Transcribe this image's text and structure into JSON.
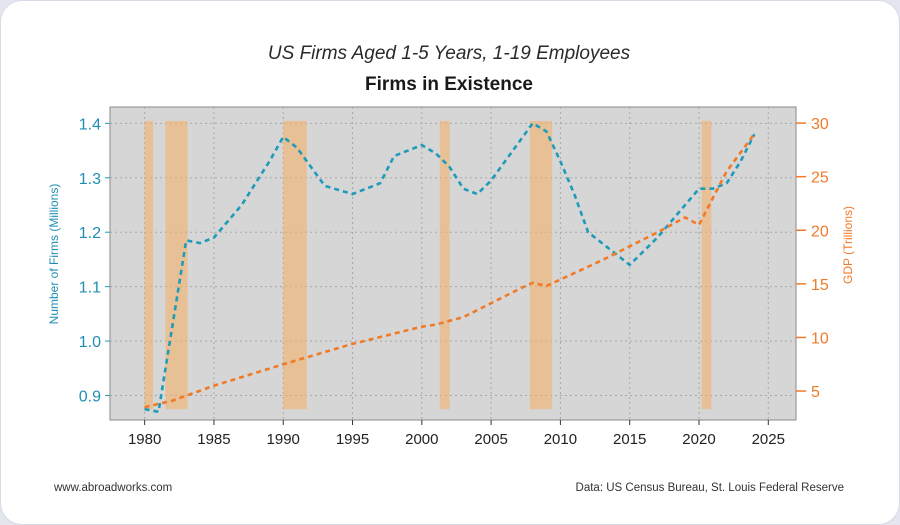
{
  "chart_data": {
    "type": "line",
    "title": "US Firms Aged 1-5 Years, 1-19 Employees",
    "subtitle": "Firms in Existence",
    "ylabel": "Number of Firms (Millions)",
    "y2label": "GDP (Trillions)",
    "xlim": [
      1977.5,
      2027
    ],
    "ylim": [
      0.855,
      1.43
    ],
    "y2lim": [
      2.3,
      31.5
    ],
    "xticks": [
      1980,
      1985,
      1990,
      1995,
      2000,
      2005,
      2010,
      2015,
      2020,
      2025
    ],
    "yticks": [
      0.9,
      1.0,
      1.1,
      1.2,
      1.3,
      1.4
    ],
    "y2ticks": [
      5,
      10,
      15,
      20,
      25,
      30
    ],
    "grid": true,
    "recessions": [
      [
        1980.0,
        1980.6
      ],
      [
        1981.5,
        1983.1
      ],
      [
        1990.0,
        1991.7
      ],
      [
        2001.3,
        2002.0
      ],
      [
        2007.8,
        2009.4
      ],
      [
        2020.2,
        2020.9
      ]
    ],
    "series": [
      {
        "name": "",
        "axis": "left",
        "color": "#1e9bb8",
        "x": [
          1980,
          1981,
          1983,
          1984,
          1985,
          1987,
          1989,
          1990,
          1991,
          1992,
          1993,
          1995,
          1997,
          1998,
          2000,
          2001,
          2002,
          2003,
          2004,
          2005,
          2007,
          2008,
          2009,
          2010,
          2011,
          2012,
          2013,
          2015,
          2017,
          2018,
          2019,
          2020,
          2021,
          2022,
          2023,
          2024
        ],
        "values": [
          0.875,
          0.87,
          1.185,
          1.18,
          1.19,
          1.25,
          1.33,
          1.375,
          1.355,
          1.32,
          1.285,
          1.27,
          1.29,
          1.34,
          1.36,
          1.345,
          1.32,
          1.28,
          1.27,
          1.295,
          1.365,
          1.4,
          1.385,
          1.33,
          1.27,
          1.2,
          1.18,
          1.14,
          1.19,
          1.22,
          1.25,
          1.28,
          1.28,
          1.29,
          1.33,
          1.38
        ]
      },
      {
        "name": "",
        "axis": "right",
        "color": "#f07a28",
        "x": [
          1980,
          1982,
          1985,
          1990,
          1995,
          2000,
          2001,
          2003,
          2005,
          2007,
          2008,
          2009,
          2011,
          2013,
          2015,
          2017,
          2019,
          2020,
          2021,
          2022,
          2024
        ],
        "values": [
          3.5,
          4.1,
          5.5,
          7.5,
          9.4,
          11.0,
          11.2,
          11.9,
          13.2,
          14.5,
          15.1,
          14.8,
          16.0,
          17.2,
          18.5,
          19.8,
          21.2,
          20.5,
          23.0,
          25.5,
          29.0
        ]
      }
    ]
  },
  "footer": {
    "left": "www.abroadworks.com",
    "right": "Data: US Census Bureau, St. Louis Federal Reserve"
  }
}
